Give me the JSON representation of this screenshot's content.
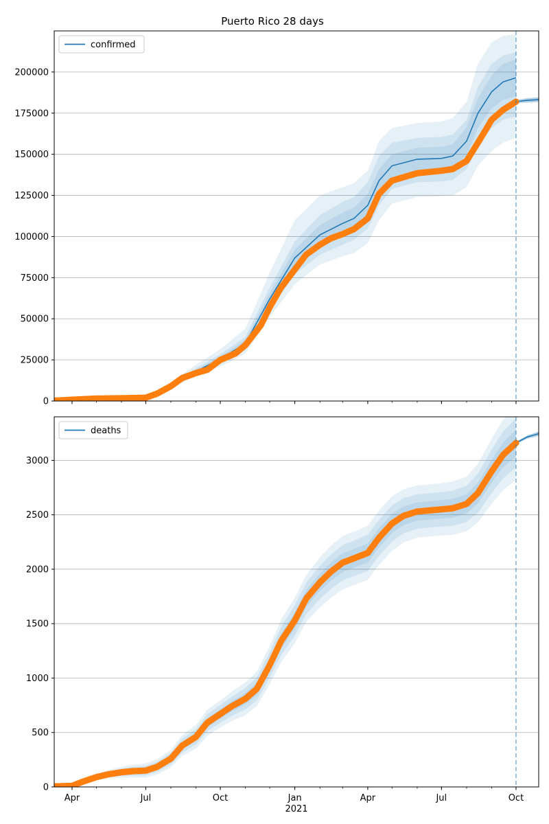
{
  "title": "Puerto Rico 28 days",
  "colors": {
    "model": "#1f77b4",
    "observed": "#ff7f0e",
    "band": "#1f77b4",
    "grid": "#b0b0b0"
  },
  "x_ticks": [
    {
      "date": "2020-04-01",
      "label": "Apr"
    },
    {
      "date": "2020-07-01",
      "label": "Jul"
    },
    {
      "date": "2020-10-01",
      "label": "Oct"
    },
    {
      "date": "2021-01-01",
      "label": "Jan"
    },
    {
      "date": "2021-04-01",
      "label": "Apr"
    },
    {
      "date": "2021-07-01",
      "label": "Jul"
    },
    {
      "date": "2021-10-01",
      "label": "Oct"
    }
  ],
  "x_year_label": "2021",
  "chart_data": [
    {
      "type": "line",
      "legend": "confirmed",
      "legend_position": "upper-left",
      "grid": "horizontal",
      "xlim": [
        "2020-03-10",
        "2021-10-29"
      ],
      "ylim": [
        0,
        225000
      ],
      "yticks": [
        0,
        25000,
        50000,
        75000,
        100000,
        125000,
        150000,
        175000,
        200000
      ],
      "yticklabels": [
        "0",
        "25000",
        "50000",
        "75000",
        "100000",
        "125000",
        "150000",
        "175000",
        "200000"
      ],
      "vline": "2021-10-01",
      "observed": {
        "x": [
          "2020-03-10",
          "2020-04-01",
          "2020-05-01",
          "2020-06-01",
          "2020-07-01",
          "2020-07-15",
          "2020-08-01",
          "2020-08-15",
          "2020-09-01",
          "2020-09-15",
          "2020-10-01",
          "2020-10-20",
          "2020-11-01",
          "2020-11-20",
          "2020-12-01",
          "2020-12-15",
          "2021-01-01",
          "2021-01-15",
          "2021-02-01",
          "2021-02-15",
          "2021-03-01",
          "2021-03-15",
          "2021-04-01",
          "2021-04-15",
          "2021-05-01",
          "2021-06-01",
          "2021-07-01",
          "2021-07-15",
          "2021-08-01",
          "2021-08-15",
          "2021-09-01",
          "2021-09-15",
          "2021-10-01"
        ],
        "y": [
          200,
          800,
          1500,
          1700,
          2000,
          4500,
          9000,
          14000,
          17000,
          19000,
          25000,
          29000,
          34000,
          46000,
          57000,
          69000,
          80000,
          89000,
          95000,
          99000,
          101500,
          104500,
          111000,
          126000,
          134000,
          138500,
          140000,
          141000,
          146000,
          157000,
          171000,
          177000,
          182000
        ]
      },
      "model": {
        "x": [
          "2020-07-01",
          "2020-08-01",
          "2020-09-01",
          "2020-10-01",
          "2020-11-01",
          "2020-12-01",
          "2021-01-01",
          "2021-02-01",
          "2021-03-01",
          "2021-03-15",
          "2021-04-01",
          "2021-04-15",
          "2021-05-01",
          "2021-06-01",
          "2021-07-01",
          "2021-07-15",
          "2021-08-01",
          "2021-08-15",
          "2021-09-01",
          "2021-09-15",
          "2021-10-01"
        ],
        "y": [
          2000,
          9500,
          18000,
          25500,
          35000,
          62000,
          87000,
          101000,
          108000,
          111000,
          119000,
          134000,
          143000,
          147000,
          147500,
          149000,
          158000,
          175000,
          188000,
          194000,
          196500
        ]
      },
      "forecast": {
        "x": [
          "2021-10-01",
          "2021-10-15",
          "2021-10-29"
        ],
        "y": [
          182000,
          182800,
          183200
        ]
      },
      "bands": [
        {
          "lower": [
            1700,
            8000,
            15000,
            21000,
            29000,
            51000,
            71000,
            83000,
            88000,
            90000,
            96000,
            110000,
            120000,
            124000,
            124500,
            125000,
            130000,
            143000,
            152000,
            157000,
            160000
          ],
          "upper": [
            2400,
            11500,
            22000,
            31500,
            44000,
            78000,
            110000,
            125000,
            130000,
            132500,
            140000,
            158000,
            166000,
            169000,
            170000,
            172000,
            182000,
            205000,
            218000,
            222000,
            223000
          ]
        },
        {
          "lower": [
            1800,
            8500,
            16000,
            22500,
            31000,
            55000,
            77000,
            89000,
            95000,
            98000,
            105000,
            119000,
            129000,
            133000,
            133500,
            134500,
            141000,
            155000,
            166000,
            171000,
            173000
          ],
          "upper": [
            2200,
            10500,
            20000,
            28500,
            39000,
            69000,
            97000,
            113000,
            121000,
            124000,
            133000,
            149000,
            157000,
            160000,
            160500,
            162000,
            171000,
            191000,
            205000,
            210000,
            212000
          ]
        },
        {
          "lower": [
            1900,
            9000,
            17000,
            24000,
            33000,
            58500,
            82000,
            95000,
            101500,
            104500,
            112000,
            127000,
            136000,
            140000,
            140500,
            142000,
            149500,
            166000,
            178000,
            183000,
            185500
          ],
          "upper": [
            2100,
            10000,
            19000,
            27000,
            37000,
            65500,
            92000,
            107000,
            114500,
            117500,
            126000,
            141000,
            150000,
            154000,
            154500,
            156000,
            166500,
            184000,
            198000,
            205000,
            207500
          ]
        }
      ],
      "forecast_band": {
        "x": [
          "2021-10-01",
          "2021-10-15",
          "2021-10-29"
        ],
        "lower": [
          181000,
          181500,
          181800
        ],
        "upper": [
          183000,
          184100,
          184600
        ]
      }
    },
    {
      "type": "line",
      "legend": "deaths",
      "legend_position": "upper-left",
      "grid": "horizontal",
      "xlim": [
        "2020-03-10",
        "2021-10-29"
      ],
      "ylim": [
        0,
        3400
      ],
      "yticks": [
        0,
        500,
        1000,
        1500,
        2000,
        2500,
        3000
      ],
      "yticklabels": [
        "0",
        "500",
        "1000",
        "1500",
        "2000",
        "2500",
        "3000"
      ],
      "vline": "2021-10-01",
      "observed": {
        "x": [
          "2020-03-10",
          "2020-04-01",
          "2020-04-15",
          "2020-05-01",
          "2020-05-15",
          "2020-06-01",
          "2020-06-15",
          "2020-07-01",
          "2020-07-15",
          "2020-08-01",
          "2020-08-15",
          "2020-09-01",
          "2020-09-15",
          "2020-10-01",
          "2020-10-15",
          "2020-11-01",
          "2020-11-15",
          "2020-12-01",
          "2020-12-15",
          "2021-01-01",
          "2021-01-15",
          "2021-02-01",
          "2021-02-15",
          "2021-03-01",
          "2021-03-15",
          "2021-04-01",
          "2021-04-15",
          "2021-05-01",
          "2021-05-15",
          "2021-06-01",
          "2021-07-01",
          "2021-07-15",
          "2021-08-01",
          "2021-08-15",
          "2021-09-01",
          "2021-09-15",
          "2021-10-01"
        ],
        "y": [
          5,
          10,
          50,
          90,
          115,
          135,
          145,
          150,
          185,
          260,
          380,
          460,
          590,
          670,
          740,
          810,
          900,
          1120,
          1340,
          1530,
          1730,
          1880,
          1980,
          2060,
          2100,
          2150,
          2290,
          2420,
          2490,
          2530,
          2550,
          2560,
          2600,
          2700,
          2900,
          3050,
          3160
        ]
      },
      "model": {
        "x": [
          "2021-10-01",
          "2021-10-15",
          "2021-10-29"
        ],
        "y": [
          3160,
          3215,
          3245
        ]
      },
      "bands": [
        {
          "offset": [
            2,
            10,
            20,
            28,
            38,
            50,
            60,
            65,
            70,
            80,
            95,
            110,
            120,
            125,
            135,
            150,
            160,
            175,
            195,
            210,
            215,
            230,
            240,
            245,
            245,
            250,
            250,
            250,
            245,
            240,
            240,
            245,
            250,
            270,
            300,
            325,
            340
          ]
        },
        {
          "offset": [
            1,
            6,
            12,
            18,
            24,
            32,
            40,
            43,
            46,
            54,
            64,
            72,
            78,
            82,
            88,
            98,
            106,
            116,
            130,
            140,
            144,
            152,
            158,
            162,
            162,
            166,
            166,
            166,
            162,
            158,
            158,
            162,
            166,
            180,
            200,
            215,
            225
          ]
        },
        {
          "offset": [
            0,
            3,
            6,
            9,
            12,
            16,
            20,
            22,
            24,
            28,
            34,
            38,
            41,
            43,
            46,
            52,
            56,
            62,
            68,
            74,
            76,
            80,
            84,
            86,
            86,
            88,
            88,
            88,
            86,
            84,
            84,
            86,
            88,
            95,
            105,
            115,
            120
          ]
        }
      ],
      "forecast_band": {
        "x": [
          "2021-10-01",
          "2021-10-15",
          "2021-10-29"
        ],
        "lower": [
          3150,
          3200,
          3225
        ],
        "upper": [
          3170,
          3230,
          3265
        ]
      }
    }
  ]
}
